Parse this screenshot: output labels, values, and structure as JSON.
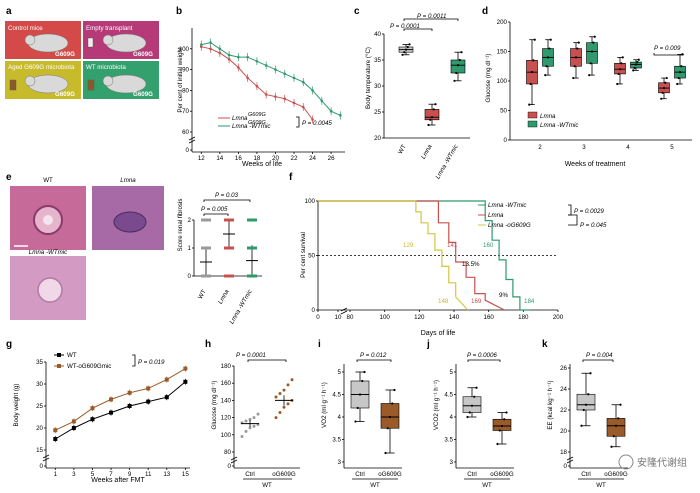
{
  "colors": {
    "red": "#c8504f",
    "green": "#2e9a6e",
    "panelA_control": "#d44a49",
    "panelA_empty": "#b63a78",
    "panelA_aged": "#c7ba2b",
    "panelA_wt": "#33a06e",
    "brown": "#9a5a2a",
    "gray_box": "#c7c7c7",
    "yellow": "#d4c642",
    "pink_red": "#e07070"
  },
  "watermark": "安隆代谢组",
  "panels": {
    "a": {
      "label": "a",
      "boxes": [
        "Control mice",
        "Empty transplant",
        "Aged G609G microbiota",
        "WT microbiota"
      ],
      "tags": [
        "G609G",
        "G609G",
        "G609G",
        "G609G"
      ]
    },
    "b": {
      "label": "b",
      "ylabel": "Per cent of initial weight",
      "xlabel": "Weeks of life",
      "legend": [
        "Lmna",
        "Lmna -WTmic"
      ],
      "sup": "G609G",
      "pval": "P = 0.0045"
    },
    "c": {
      "label": "c",
      "ylabel": "Body temperature (°C)",
      "p1": "P = 0.0001",
      "p2": "P = 0.0011",
      "xticks": [
        "WT",
        "Lmna",
        "Lmna -WTmic"
      ]
    },
    "d": {
      "label": "d",
      "ylabel": "Glucose (mg dl⁻¹)",
      "xlabel": "Weeks of treatment",
      "pval": "P = 0.009",
      "legend": [
        "Lmna",
        "Lmna -WTmic"
      ]
    },
    "e": {
      "label": "e",
      "img_labels": [
        "WT",
        "Lmna",
        "Lmna -WTmic"
      ],
      "ylabel": "Score renal fibrosis",
      "p1": "P = 0.005",
      "p2": "P = 0.03",
      "xticks": [
        "WT",
        "Lmna",
        "Lmna -WTmic"
      ]
    },
    "f": {
      "label": "f",
      "ylabel": "Per cent survival",
      "xlabel": "Days of life",
      "legend": [
        "Lmna -WTmic",
        "Lmna",
        "Lmna -oG609G"
      ],
      "p1": "P = 0.0029",
      "p2": "P = 0.045",
      "annot": [
        "129",
        "141",
        "160",
        "13.5%",
        "9%",
        "148",
        "169",
        "184"
      ]
    },
    "g": {
      "label": "g",
      "ylabel": "Body weight (g)",
      "xlabel": "Weeks after FMT",
      "legend": [
        "WT",
        "WT-oG609Gmic"
      ],
      "pval": "P = 0.019"
    },
    "h": {
      "label": "h",
      "ylabel": "Glucose (mg dl⁻¹)",
      "pval": "P = 0.0001",
      "xticks": [
        "Ctrl",
        "oG609G"
      ],
      "group": "WT"
    },
    "i": {
      "label": "i",
      "ylabel": "VO2 (ml g⁻¹ h⁻¹)",
      "pval": "P = 0.012",
      "xticks": [
        "Ctrl",
        "oG609G"
      ],
      "group": "WT"
    },
    "j": {
      "label": "j",
      "ylabel": "VCO2 (ml g⁻¹ h⁻¹)",
      "pval": "P = 0.0006",
      "xticks": [
        "Ctrl",
        "oG609G"
      ],
      "group": "WT"
    },
    "k": {
      "label": "k",
      "ylabel": "EE (kcal kg⁻¹ h⁻¹)",
      "pval": "P = 0.004",
      "xticks": [
        "Ctrl",
        "oG609G"
      ],
      "group": "WT"
    }
  },
  "chart_data": [
    {
      "panel": "b",
      "type": "line",
      "x": [
        12,
        13,
        14,
        15,
        16,
        17,
        18,
        19,
        20,
        21,
        22,
        23,
        24,
        25,
        26,
        27
      ],
      "series": [
        {
          "name": "Lmna",
          "values": [
            101,
            100,
            98,
            95,
            91,
            86,
            82,
            78,
            77,
            76,
            74,
            72,
            66,
            null,
            null,
            null
          ]
        },
        {
          "name": "Lmna -WTmic",
          "values": [
            102,
            103,
            100,
            97,
            96,
            96,
            94,
            92,
            90,
            88,
            86,
            84,
            80,
            75,
            70,
            68
          ]
        }
      ],
      "ylim": [
        0,
        110
      ],
      "yticks": [
        0,
        60,
        70,
        80,
        90,
        100
      ],
      "xticks": [
        12,
        14,
        16,
        18,
        20,
        22,
        24,
        26
      ]
    },
    {
      "panel": "c",
      "type": "box",
      "categories": [
        "WT",
        "Lmna",
        "Lmna -WTmic"
      ],
      "boxes": [
        [
          36.0,
          36.5,
          37.0,
          37.5,
          38.0
        ],
        [
          22.5,
          23.5,
          24.0,
          25.5,
          26.5
        ],
        [
          31.0,
          32.5,
          34.0,
          35.0,
          36.5
        ]
      ],
      "ylim": [
        20,
        40
      ],
      "yticks": [
        20,
        25,
        30,
        35,
        40
      ]
    },
    {
      "panel": "d",
      "type": "box",
      "categories": [
        "2",
        "3",
        "4",
        "5"
      ],
      "series": [
        {
          "name": "Lmna",
          "boxes": [
            [
              60,
              95,
              115,
              135,
              170
            ],
            [
              105,
              125,
              140,
              155,
              165
            ],
            [
              95,
              112,
              120,
              130,
              140
            ],
            [
              70,
              80,
              88,
              97,
              105
            ]
          ]
        },
        {
          "name": "Lmna -WTmic",
          "boxes": [
            [
              110,
              125,
              140,
              155,
              170
            ],
            [
              110,
              130,
              150,
              165,
              175
            ],
            [
              118,
              122,
              128,
              132,
              136
            ],
            [
              95,
              105,
              115,
              125,
              145
            ]
          ]
        }
      ],
      "ylim": [
        0,
        200
      ],
      "yticks": [
        0,
        50,
        100,
        150,
        200
      ]
    },
    {
      "panel": "e",
      "type": "scatter",
      "categories": [
        "WT",
        "Lmna",
        "Lmna -WTmic"
      ],
      "means": [
        0.5,
        1.5,
        0.55
      ],
      "sd": [
        0.5,
        0.45,
        0.55
      ],
      "ylim": [
        0,
        2
      ],
      "yticks": [
        0,
        1,
        2
      ]
    },
    {
      "panel": "f",
      "type": "line",
      "xlim": [
        0,
        200
      ],
      "xticks": [
        0,
        10,
        80,
        100,
        120,
        140,
        160,
        180,
        200
      ],
      "ylim": [
        0,
        100
      ],
      "yticks": [
        0,
        50,
        100
      ],
      "series": [
        {
          "name": "Lmna -WTmic",
          "x": [
            0,
            158,
            158,
            162,
            162,
            166,
            166,
            170,
            170,
            174,
            174,
            178,
            178,
            184
          ],
          "y": [
            100,
            100,
            82,
            82,
            64,
            64,
            46,
            46,
            28,
            28,
            12,
            12,
            0,
            0
          ]
        },
        {
          "name": "Lmna",
          "x": [
            0,
            131,
            131,
            137,
            137,
            141,
            141,
            147,
            147,
            152,
            152,
            158,
            158,
            169
          ],
          "y": [
            100,
            100,
            80,
            80,
            62,
            62,
            44,
            44,
            30,
            30,
            15,
            15,
            9,
            0
          ]
        },
        {
          "name": "Lmna -oG609G",
          "x": [
            0,
            118,
            118,
            121,
            121,
            125,
            125,
            129,
            129,
            133,
            133,
            137,
            137,
            141,
            141,
            148
          ],
          "y": [
            100,
            100,
            90,
            90,
            80,
            80,
            70,
            70,
            55,
            55,
            40,
            40,
            25,
            25,
            12,
            0
          ]
        }
      ]
    },
    {
      "panel": "g",
      "type": "line",
      "x": [
        1,
        3,
        5,
        7,
        9,
        11,
        13,
        15
      ],
      "ylim": [
        0,
        35
      ],
      "yticks": [
        0,
        15,
        20,
        25,
        30,
        35
      ],
      "xticks": [
        1,
        3,
        5,
        7,
        9,
        11,
        13,
        15
      ],
      "series": [
        {
          "name": "WT",
          "values": [
            17.5,
            20.0,
            22.0,
            23.5,
            25.0,
            26.0,
            27.0,
            30.5
          ]
        },
        {
          "name": "WT-oG609Gmic",
          "values": [
            19.5,
            21.5,
            24.5,
            26.5,
            28.0,
            29.0,
            31.0,
            33.5
          ]
        }
      ]
    },
    {
      "panel": "h",
      "type": "scatter",
      "categories": [
        "Ctrl",
        "oG609G"
      ],
      "means": [
        113,
        140
      ],
      "sem": [
        4,
        6
      ],
      "ylim": [
        0,
        180
      ],
      "yticks": [
        0,
        80,
        100,
        120,
        140,
        160,
        180
      ]
    },
    {
      "panel": "i",
      "type": "box",
      "categories": [
        "Ctrl",
        "oG609G"
      ],
      "boxes": [
        [
          3.9,
          4.2,
          4.5,
          4.8,
          5.0
        ],
        [
          3.2,
          3.75,
          4.0,
          4.3,
          4.6
        ]
      ],
      "ylim": [
        3.0,
        5.0
      ],
      "yticks": [
        3.0,
        3.5,
        4.0,
        4.5,
        5.0
      ]
    },
    {
      "panel": "j",
      "type": "box",
      "categories": [
        "Ctrl",
        "oG609G"
      ],
      "boxes": [
        [
          4.0,
          4.1,
          4.25,
          4.45,
          4.65
        ],
        [
          3.4,
          3.7,
          3.8,
          3.95,
          4.1
        ]
      ],
      "ylim": [
        3.0,
        5.0
      ],
      "yticks": [
        3.0,
        3.5,
        4.0,
        4.5,
        5.0
      ]
    },
    {
      "panel": "k",
      "type": "box",
      "categories": [
        "Ctrl",
        "oG609G"
      ],
      "boxes": [
        [
          20.5,
          22.0,
          22.5,
          23.5,
          25.5
        ],
        [
          18.5,
          19.5,
          20.5,
          21.2,
          22.5
        ]
      ],
      "ylim": [
        0,
        26
      ],
      "yticks": [
        0,
        18,
        20,
        22,
        24,
        26
      ]
    }
  ]
}
